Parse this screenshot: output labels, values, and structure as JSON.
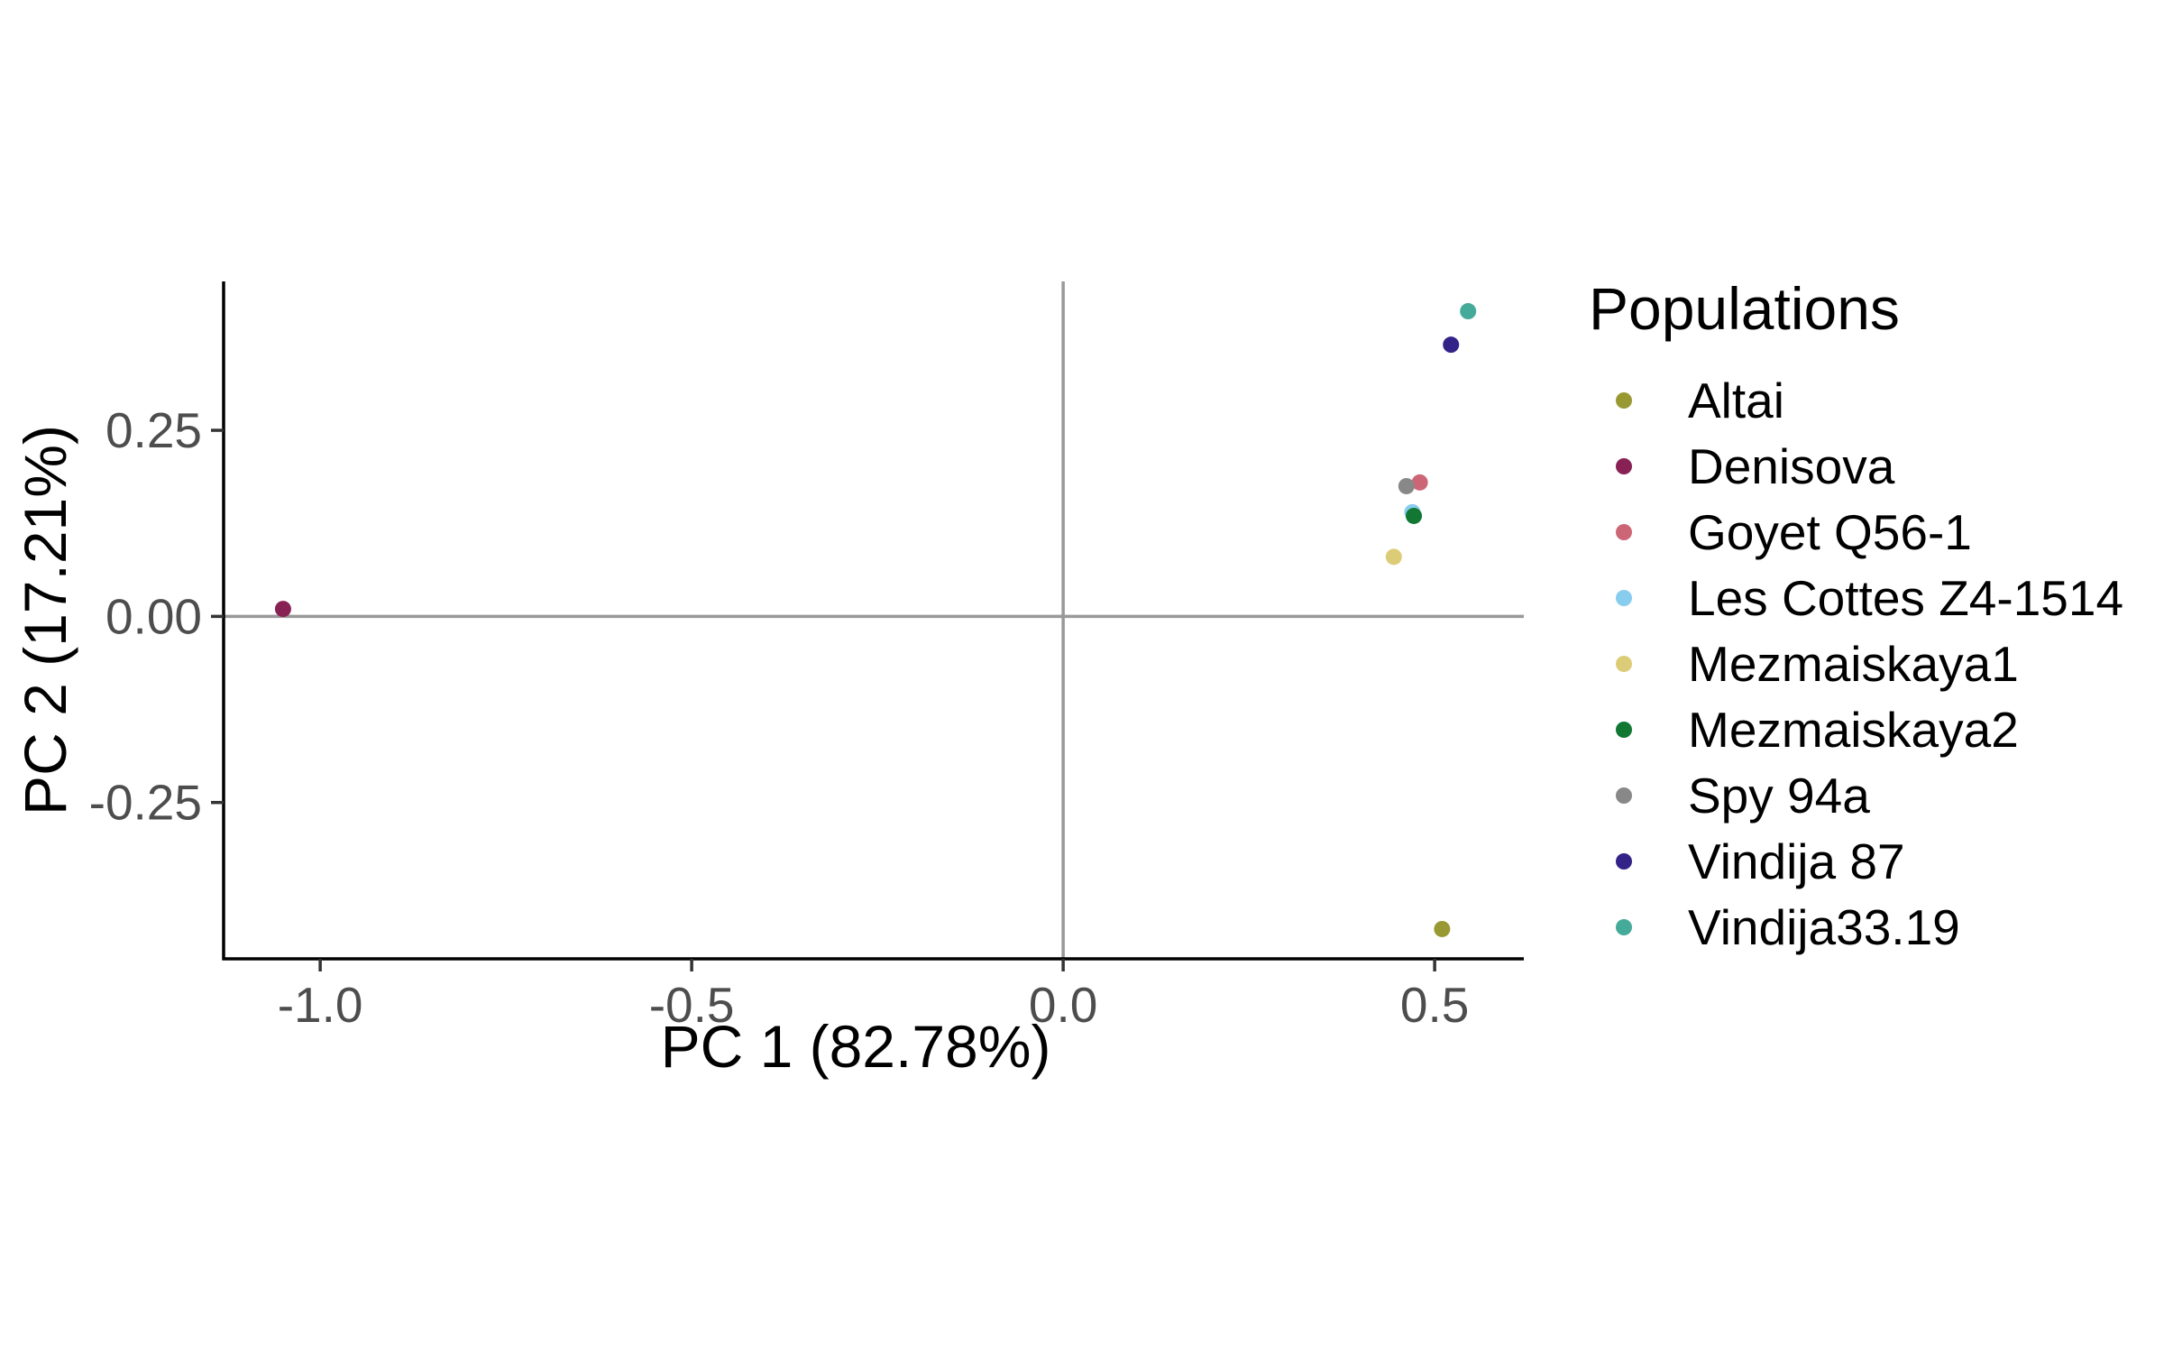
{
  "chart_data": {
    "type": "scatter",
    "xlabel": "PC 1 (82.78%)",
    "ylabel": "PC 2 (17.21%)",
    "xlim": [
      -1.13,
      0.62
    ],
    "ylim": [
      -0.46,
      0.45
    ],
    "x_ticks": [
      -1.0,
      -0.5,
      0.0,
      0.5
    ],
    "x_tick_labels": [
      "-1.0",
      "-0.5",
      "0.0",
      "0.5"
    ],
    "y_ticks": [
      -0.25,
      0.0,
      0.25
    ],
    "y_tick_labels": [
      "-0.25",
      "0.00",
      "0.25"
    ],
    "reference_lines": {
      "x": 0,
      "y": 0,
      "color": "#999999"
    },
    "grid": false,
    "legend": {
      "title": "Populations",
      "position": "right"
    },
    "series": [
      {
        "name": "Altai",
        "color": "#999933",
        "x": 0.51,
        "y": -0.42
      },
      {
        "name": "Denisova",
        "color": "#882255",
        "x": -1.05,
        "y": 0.01
      },
      {
        "name": "Goyet Q56-1",
        "color": "#CC6677",
        "x": 0.48,
        "y": 0.18
      },
      {
        "name": "Les Cottes Z4-1514",
        "color": "#88CCEE",
        "x": 0.47,
        "y": 0.14
      },
      {
        "name": "Mezmaiskaya1",
        "color": "#DDCC77",
        "x": 0.445,
        "y": 0.08
      },
      {
        "name": "Mezmaiskaya2",
        "color": "#117733",
        "x": 0.472,
        "y": 0.135
      },
      {
        "name": "Spy 94a",
        "color": "#888888",
        "x": 0.462,
        "y": 0.175
      },
      {
        "name": "Vindija 87",
        "color": "#332288",
        "x": 0.522,
        "y": 0.365
      },
      {
        "name": "Vindija33.19",
        "color": "#44AA99",
        "x": 0.545,
        "y": 0.41
      }
    ]
  }
}
